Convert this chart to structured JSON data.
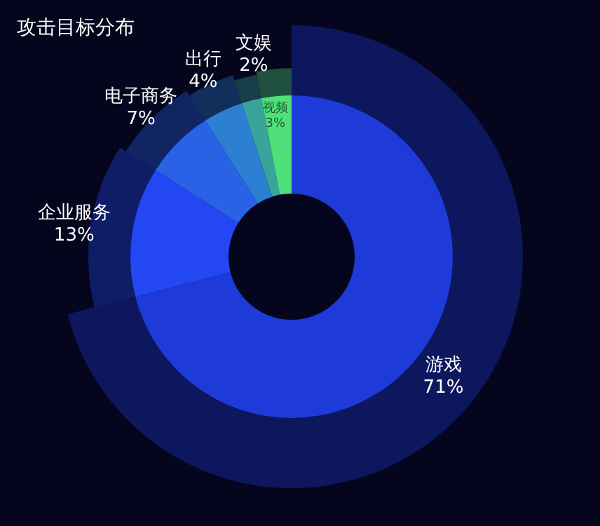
{
  "chart_data": {
    "type": "donut",
    "title": "攻击目标分布",
    "categories": [
      "游戏",
      "企业服务",
      "电子商务",
      "出行",
      "文娱",
      "视频"
    ],
    "values": [
      71,
      13,
      7,
      4,
      2,
      3
    ],
    "value_labels": [
      "71%",
      "13%",
      "7%",
      "4%",
      "2%",
      "3%"
    ],
    "colors": [
      "#1e3ad8",
      "#2347f2",
      "#2a62e6",
      "#2c7fd2",
      "#38a59a",
      "#4fe07c"
    ]
  }
}
